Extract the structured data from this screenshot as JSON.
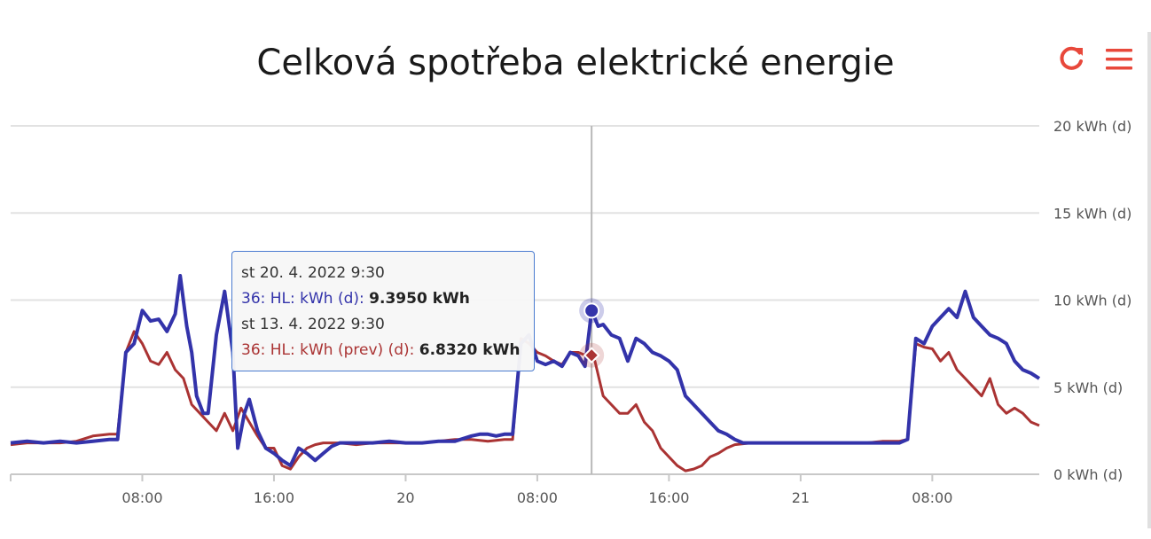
{
  "chart_data": {
    "type": "line",
    "title": "Celková spotřeba elektrické energie",
    "y_axis": {
      "ticks": [
        "0 kWh (d)",
        "5 kWh (d)",
        "10 kWh (d)",
        "15 kWh (d)",
        "20 kWh (d)"
      ],
      "ylim": [
        0,
        20
      ],
      "position": "right"
    },
    "x_axis": {
      "ticks": [
        "08:00",
        "16:00",
        "20",
        "08:00",
        "16:00",
        "21",
        "08:00"
      ],
      "tick_hours": [
        8,
        16,
        24,
        32,
        40,
        48,
        56
      ],
      "range_hours": [
        0,
        62.5
      ]
    },
    "grid": true,
    "series": [
      {
        "name": "36: HL: kWh (d)",
        "color": "#3333aa",
        "points": [
          [
            0,
            1.8
          ],
          [
            1,
            1.9
          ],
          [
            2,
            1.8
          ],
          [
            3,
            1.9
          ],
          [
            4,
            1.8
          ],
          [
            5,
            1.9
          ],
          [
            6,
            2.0
          ],
          [
            6.5,
            2.0
          ],
          [
            7,
            7.0
          ],
          [
            7.5,
            7.5
          ],
          [
            8,
            9.4
          ],
          [
            8.5,
            8.8
          ],
          [
            9,
            8.9
          ],
          [
            9.5,
            8.2
          ],
          [
            10,
            9.2
          ],
          [
            10.3,
            11.4
          ],
          [
            10.7,
            8.5
          ],
          [
            11,
            7.0
          ],
          [
            11.3,
            4.5
          ],
          [
            11.7,
            3.5
          ],
          [
            12,
            3.5
          ],
          [
            12.5,
            8.0
          ],
          [
            13,
            10.5
          ],
          [
            13.5,
            7.0
          ],
          [
            13.8,
            1.5
          ],
          [
            14.2,
            3.5
          ],
          [
            14.5,
            4.3
          ],
          [
            15,
            2.5
          ],
          [
            15.5,
            1.5
          ],
          [
            16,
            1.2
          ],
          [
            16.5,
            0.8
          ],
          [
            17,
            0.5
          ],
          [
            17.5,
            1.5
          ],
          [
            18,
            1.2
          ],
          [
            18.5,
            0.8
          ],
          [
            19,
            1.2
          ],
          [
            19.5,
            1.6
          ],
          [
            20,
            1.8
          ],
          [
            21,
            1.8
          ],
          [
            22,
            1.8
          ],
          [
            23,
            1.9
          ],
          [
            24,
            1.8
          ],
          [
            25,
            1.8
          ],
          [
            26,
            1.9
          ],
          [
            27,
            1.9
          ],
          [
            28,
            2.2
          ],
          [
            28.5,
            2.3
          ],
          [
            29,
            2.3
          ],
          [
            29.5,
            2.2
          ],
          [
            30,
            2.3
          ],
          [
            30.5,
            2.3
          ],
          [
            31,
            7.5
          ],
          [
            31.5,
            8.0
          ],
          [
            32,
            6.5
          ],
          [
            32.5,
            6.3
          ],
          [
            33,
            6.5
          ],
          [
            33.5,
            6.2
          ],
          [
            34,
            7.0
          ],
          [
            34.5,
            6.8
          ],
          [
            34.9,
            6.2
          ],
          [
            35.3,
            9.4
          ],
          [
            35.7,
            8.5
          ],
          [
            36,
            8.6
          ],
          [
            36.5,
            8.0
          ],
          [
            37,
            7.8
          ],
          [
            37.5,
            6.5
          ],
          [
            38,
            7.8
          ],
          [
            38.5,
            7.5
          ],
          [
            39,
            7.0
          ],
          [
            39.5,
            6.8
          ],
          [
            40,
            6.5
          ],
          [
            40.5,
            6.0
          ],
          [
            41,
            4.5
          ],
          [
            41.5,
            4.0
          ],
          [
            42,
            3.5
          ],
          [
            42.5,
            3.0
          ],
          [
            43,
            2.5
          ],
          [
            43.5,
            2.3
          ],
          [
            44,
            2.0
          ],
          [
            44.5,
            1.8
          ],
          [
            45,
            1.8
          ],
          [
            46,
            1.8
          ],
          [
            47,
            1.8
          ],
          [
            48,
            1.8
          ],
          [
            49,
            1.8
          ],
          [
            50,
            1.8
          ],
          [
            51,
            1.8
          ],
          [
            52,
            1.8
          ],
          [
            53,
            1.8
          ],
          [
            54,
            1.8
          ],
          [
            54.5,
            2.0
          ],
          [
            55,
            7.8
          ],
          [
            55.5,
            7.5
          ],
          [
            56,
            8.5
          ],
          [
            56.5,
            9.0
          ],
          [
            57,
            9.5
          ],
          [
            57.5,
            9.0
          ],
          [
            58,
            10.5
          ],
          [
            58.5,
            9.0
          ],
          [
            59,
            8.5
          ],
          [
            59.5,
            8.0
          ],
          [
            60,
            7.8
          ],
          [
            60.5,
            7.5
          ],
          [
            61,
            6.5
          ],
          [
            61.5,
            6.0
          ],
          [
            62,
            5.8
          ],
          [
            62.5,
            5.5
          ]
        ]
      },
      {
        "name": "36: HL: kWh (prev) (d)",
        "color": "#aa3333",
        "points": [
          [
            0,
            1.7
          ],
          [
            1,
            1.8
          ],
          [
            2,
            1.8
          ],
          [
            3,
            1.8
          ],
          [
            4,
            1.9
          ],
          [
            5,
            2.2
          ],
          [
            6,
            2.3
          ],
          [
            6.5,
            2.3
          ],
          [
            7,
            7.0
          ],
          [
            7.5,
            8.2
          ],
          [
            8,
            7.5
          ],
          [
            8.5,
            6.5
          ],
          [
            9,
            6.3
          ],
          [
            9.5,
            7.0
          ],
          [
            10,
            6.0
          ],
          [
            10.5,
            5.5
          ],
          [
            11,
            4.0
          ],
          [
            11.5,
            3.5
          ],
          [
            12,
            3.0
          ],
          [
            12.5,
            2.5
          ],
          [
            13,
            3.5
          ],
          [
            13.5,
            2.5
          ],
          [
            14,
            3.8
          ],
          [
            14.5,
            3.0
          ],
          [
            15,
            2.2
          ],
          [
            15.5,
            1.5
          ],
          [
            16,
            1.5
          ],
          [
            16.5,
            0.5
          ],
          [
            17,
            0.3
          ],
          [
            17.5,
            1.0
          ],
          [
            18,
            1.5
          ],
          [
            18.5,
            1.7
          ],
          [
            19,
            1.8
          ],
          [
            20,
            1.8
          ],
          [
            21,
            1.7
          ],
          [
            22,
            1.8
          ],
          [
            23,
            1.8
          ],
          [
            24,
            1.8
          ],
          [
            25,
            1.8
          ],
          [
            26,
            1.9
          ],
          [
            27,
            2.0
          ],
          [
            28,
            2.0
          ],
          [
            29,
            1.9
          ],
          [
            30,
            2.0
          ],
          [
            30.5,
            2.0
          ],
          [
            31,
            7.8
          ],
          [
            31.5,
            7.5
          ],
          [
            32,
            7.0
          ],
          [
            32.5,
            6.8
          ],
          [
            33,
            6.5
          ],
          [
            33.5,
            6.3
          ],
          [
            34,
            7.0
          ],
          [
            34.5,
            7.0
          ],
          [
            35,
            6.8
          ],
          [
            35.5,
            6.5
          ],
          [
            36,
            4.5
          ],
          [
            36.5,
            4.0
          ],
          [
            37,
            3.5
          ],
          [
            37.5,
            3.5
          ],
          [
            38,
            4.0
          ],
          [
            38.5,
            3.0
          ],
          [
            39,
            2.5
          ],
          [
            39.5,
            1.5
          ],
          [
            40,
            1.0
          ],
          [
            40.5,
            0.5
          ],
          [
            41,
            0.2
          ],
          [
            41.5,
            0.3
          ],
          [
            42,
            0.5
          ],
          [
            42.5,
            1.0
          ],
          [
            43,
            1.2
          ],
          [
            43.5,
            1.5
          ],
          [
            44,
            1.7
          ],
          [
            45,
            1.8
          ],
          [
            46,
            1.8
          ],
          [
            47,
            1.8
          ],
          [
            48,
            1.8
          ],
          [
            49,
            1.8
          ],
          [
            50,
            1.8
          ],
          [
            51,
            1.8
          ],
          [
            52,
            1.8
          ],
          [
            53,
            1.9
          ],
          [
            54,
            1.9
          ],
          [
            54.5,
            2.0
          ],
          [
            55,
            7.5
          ],
          [
            55.5,
            7.3
          ],
          [
            56,
            7.2
          ],
          [
            56.5,
            6.5
          ],
          [
            57,
            7.0
          ],
          [
            57.5,
            6.0
          ],
          [
            58,
            5.5
          ],
          [
            58.5,
            5.0
          ],
          [
            59,
            4.5
          ],
          [
            59.5,
            5.5
          ],
          [
            60,
            4.0
          ],
          [
            60.5,
            3.5
          ],
          [
            61,
            3.8
          ],
          [
            61.5,
            3.5
          ],
          [
            62,
            3.0
          ],
          [
            62.5,
            2.8
          ]
        ]
      }
    ],
    "crosshair_hour": 35.3,
    "highlight": [
      {
        "series": 0,
        "x": 35.3,
        "y": 9.395
      },
      {
        "series": 1,
        "x": 35.3,
        "y": 6.832
      }
    ],
    "tooltip": {
      "date_current": "st 20. 4. 2022 9:30",
      "current_label": "36: HL: kWh (d): ",
      "current_value": "9.3950 kWh",
      "date_prev": "st 13. 4. 2022 9:30",
      "prev_label": "36: HL: kWh (prev) (d): ",
      "prev_value": "6.8320 kWh"
    }
  },
  "toolbar": {
    "refresh_icon": "refresh-icon",
    "menu_icon": "hamburger-menu-icon",
    "icon_color": "#e8483b"
  }
}
